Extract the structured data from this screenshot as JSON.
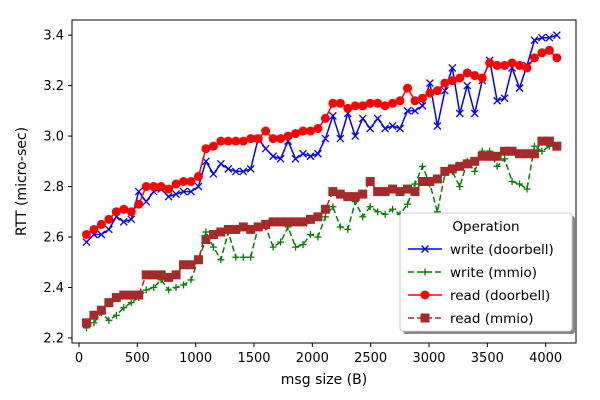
{
  "chart_data": {
    "type": "line",
    "xlabel": "msg size (B)",
    "ylabel": "RTT (micro-sec)",
    "xlim": [
      -60,
      4260
    ],
    "ylim": [
      2.18,
      3.46
    ],
    "x_ticks": [
      0,
      500,
      1000,
      1500,
      2000,
      2500,
      3000,
      3500,
      4000
    ],
    "y_ticks": [
      2.2,
      2.4,
      2.6,
      2.8,
      3.0,
      3.2,
      3.4
    ],
    "y_tick_labels": [
      "2.2",
      "2.4",
      "2.6",
      "2.8",
      "3.0",
      "3.2",
      "3.4"
    ],
    "grid": false,
    "legend": {
      "title": "Operation",
      "placement": "lower-right"
    },
    "series": [
      {
        "name": "write (doorbell)",
        "color": "#0000ff",
        "linestyle": "solid",
        "marker": "x",
        "x": [
          64,
          128,
          192,
          256,
          320,
          384,
          448,
          512,
          576,
          640,
          704,
          768,
          832,
          896,
          960,
          1024,
          1088,
          1152,
          1216,
          1280,
          1344,
          1408,
          1472,
          1536,
          1600,
          1664,
          1728,
          1792,
          1856,
          1920,
          1984,
          2048,
          2112,
          2176,
          2240,
          2304,
          2368,
          2432,
          2496,
          2560,
          2624,
          2688,
          2752,
          2816,
          2880,
          2944,
          3008,
          3072,
          3136,
          3200,
          3264,
          3328,
          3392,
          3456,
          3520,
          3584,
          3648,
          3712,
          3776,
          3840,
          3904,
          3968,
          4032,
          4096
        ],
        "y": [
          2.58,
          2.61,
          2.61,
          2.63,
          2.68,
          2.66,
          2.67,
          2.78,
          2.74,
          2.78,
          2.79,
          2.76,
          2.77,
          2.78,
          2.78,
          2.8,
          2.9,
          2.85,
          2.89,
          2.87,
          2.86,
          2.86,
          2.87,
          2.99,
          2.95,
          2.92,
          2.91,
          2.98,
          2.91,
          2.93,
          2.92,
          2.93,
          2.99,
          3.08,
          2.99,
          3.09,
          3.0,
          3.07,
          3.03,
          3.07,
          3.03,
          3.04,
          3.03,
          3.1,
          3.1,
          3.12,
          3.21,
          3.04,
          3.18,
          3.27,
          3.09,
          3.2,
          3.09,
          3.22,
          3.3,
          3.14,
          3.15,
          3.27,
          3.19,
          3.28,
          3.38,
          3.39,
          3.39,
          3.4
        ]
      },
      {
        "name": "write (mmio)",
        "color": "#008000",
        "linestyle": "dashed",
        "marker": "+",
        "x": [
          64,
          128,
          192,
          256,
          320,
          384,
          448,
          512,
          576,
          640,
          704,
          768,
          832,
          896,
          960,
          1024,
          1088,
          1152,
          1216,
          1280,
          1344,
          1408,
          1472,
          1536,
          1600,
          1664,
          1728,
          1792,
          1856,
          1920,
          1984,
          2048,
          2112,
          2176,
          2240,
          2304,
          2368,
          2432,
          2496,
          2560,
          2624,
          2688,
          2752,
          2816,
          2880,
          2944,
          3008,
          3072,
          3136,
          3200,
          3264,
          3328,
          3392,
          3456,
          3520,
          3584,
          3648,
          3712,
          3776,
          3840,
          3904,
          3968,
          4032,
          4096
        ],
        "y": [
          2.24,
          2.26,
          2.3,
          2.27,
          2.29,
          2.32,
          2.34,
          2.36,
          2.39,
          2.4,
          2.43,
          2.39,
          2.4,
          2.41,
          2.43,
          2.51,
          2.62,
          2.56,
          2.51,
          2.62,
          2.52,
          2.52,
          2.52,
          2.64,
          2.64,
          2.56,
          2.58,
          2.64,
          2.56,
          2.57,
          2.61,
          2.6,
          2.68,
          2.72,
          2.64,
          2.63,
          2.74,
          2.68,
          2.72,
          2.7,
          2.69,
          2.71,
          2.69,
          2.73,
          2.81,
          2.88,
          2.81,
          2.7,
          2.85,
          2.86,
          2.8,
          2.9,
          2.86,
          2.94,
          2.94,
          2.88,
          2.91,
          2.82,
          2.81,
          2.79,
          2.96,
          2.94,
          2.96,
          2.96
        ]
      },
      {
        "name": "read (doorbell)",
        "color": "#ff0000",
        "linestyle": "solid",
        "marker": "o",
        "x": [
          64,
          128,
          192,
          256,
          320,
          384,
          448,
          512,
          576,
          640,
          704,
          768,
          832,
          896,
          960,
          1024,
          1088,
          1152,
          1216,
          1280,
          1344,
          1408,
          1472,
          1536,
          1600,
          1664,
          1728,
          1792,
          1856,
          1920,
          1984,
          2048,
          2112,
          2176,
          2240,
          2304,
          2368,
          2432,
          2496,
          2560,
          2624,
          2688,
          2752,
          2816,
          2880,
          2944,
          3008,
          3072,
          3136,
          3200,
          3264,
          3328,
          3392,
          3456,
          3520,
          3584,
          3648,
          3712,
          3776,
          3840,
          3904,
          3968,
          4032,
          4096
        ],
        "y": [
          2.61,
          2.63,
          2.65,
          2.67,
          2.7,
          2.71,
          2.7,
          2.73,
          2.8,
          2.8,
          2.8,
          2.79,
          2.81,
          2.82,
          2.82,
          2.84,
          2.95,
          2.96,
          2.98,
          2.98,
          2.98,
          2.98,
          2.99,
          2.99,
          3.02,
          2.99,
          2.99,
          3.0,
          3.01,
          3.02,
          3.02,
          3.03,
          3.07,
          3.13,
          3.13,
          3.11,
          3.12,
          3.12,
          3.13,
          3.13,
          3.12,
          3.13,
          3.14,
          3.19,
          3.14,
          3.15,
          3.17,
          3.18,
          3.21,
          3.22,
          3.23,
          3.25,
          3.24,
          3.23,
          3.29,
          3.28,
          3.28,
          3.29,
          3.28,
          3.27,
          3.31,
          3.33,
          3.34,
          3.31
        ]
      },
      {
        "name": "read (mmio)",
        "color": "#a52a2a",
        "linestyle": "dashed",
        "marker": "s",
        "x": [
          64,
          128,
          192,
          256,
          320,
          384,
          448,
          512,
          576,
          640,
          704,
          768,
          832,
          896,
          960,
          1024,
          1088,
          1152,
          1216,
          1280,
          1344,
          1408,
          1472,
          1536,
          1600,
          1664,
          1728,
          1792,
          1856,
          1920,
          1984,
          2048,
          2112,
          2176,
          2240,
          2304,
          2368,
          2432,
          2496,
          2560,
          2624,
          2688,
          2752,
          2816,
          2880,
          2944,
          3008,
          3072,
          3136,
          3200,
          3264,
          3328,
          3392,
          3456,
          3520,
          3584,
          3648,
          3712,
          3776,
          3840,
          3904,
          3968,
          4032,
          4096
        ],
        "y": [
          2.26,
          2.29,
          2.31,
          2.34,
          2.36,
          2.37,
          2.37,
          2.37,
          2.45,
          2.45,
          2.45,
          2.44,
          2.45,
          2.49,
          2.49,
          2.51,
          2.59,
          2.61,
          2.62,
          2.63,
          2.63,
          2.64,
          2.63,
          2.64,
          2.65,
          2.66,
          2.66,
          2.66,
          2.66,
          2.66,
          2.67,
          2.68,
          2.71,
          2.78,
          2.77,
          2.76,
          2.76,
          2.77,
          2.82,
          2.78,
          2.78,
          2.79,
          2.78,
          2.79,
          2.78,
          2.82,
          2.82,
          2.83,
          2.86,
          2.87,
          2.88,
          2.89,
          2.9,
          2.92,
          2.92,
          2.92,
          2.94,
          2.94,
          2.93,
          2.93,
          2.93,
          2.98,
          2.98,
          2.96
        ]
      }
    ]
  }
}
